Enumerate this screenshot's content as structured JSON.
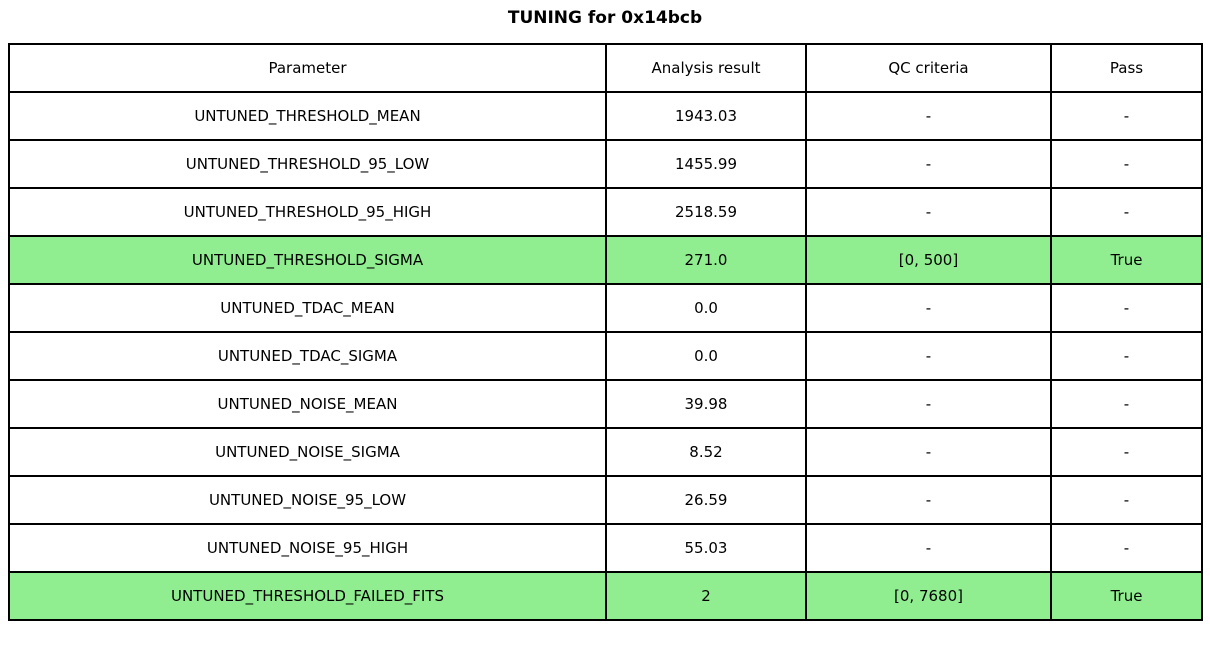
{
  "title": "TUNING for 0x14bcb",
  "highlight_color": "#90EE90",
  "chart_data": {
    "type": "table",
    "title": "TUNING for 0x14bcb",
    "columns": [
      "Parameter",
      "Analysis result",
      "QC criteria",
      "Pass"
    ],
    "rows": [
      {
        "parameter": "UNTUNED_THRESHOLD_MEAN",
        "result": "1943.03",
        "qc": "-",
        "pass": "-",
        "highlight": false
      },
      {
        "parameter": "UNTUNED_THRESHOLD_95_LOW",
        "result": "1455.99",
        "qc": "-",
        "pass": "-",
        "highlight": false
      },
      {
        "parameter": "UNTUNED_THRESHOLD_95_HIGH",
        "result": "2518.59",
        "qc": "-",
        "pass": "-",
        "highlight": false
      },
      {
        "parameter": "UNTUNED_THRESHOLD_SIGMA",
        "result": "271.0",
        "qc": "[0, 500]",
        "pass": "True",
        "highlight": true
      },
      {
        "parameter": "UNTUNED_TDAC_MEAN",
        "result": "0.0",
        "qc": "-",
        "pass": "-",
        "highlight": false
      },
      {
        "parameter": "UNTUNED_TDAC_SIGMA",
        "result": "0.0",
        "qc": "-",
        "pass": "-",
        "highlight": false
      },
      {
        "parameter": "UNTUNED_NOISE_MEAN",
        "result": "39.98",
        "qc": "-",
        "pass": "-",
        "highlight": false
      },
      {
        "parameter": "UNTUNED_NOISE_SIGMA",
        "result": "8.52",
        "qc": "-",
        "pass": "-",
        "highlight": false
      },
      {
        "parameter": "UNTUNED_NOISE_95_LOW",
        "result": "26.59",
        "qc": "-",
        "pass": "-",
        "highlight": false
      },
      {
        "parameter": "UNTUNED_NOISE_95_HIGH",
        "result": "55.03",
        "qc": "-",
        "pass": "-",
        "highlight": false
      },
      {
        "parameter": "UNTUNED_THRESHOLD_FAILED_FITS",
        "result": "2",
        "qc": "[0, 7680]",
        "pass": "True",
        "highlight": true
      }
    ]
  }
}
